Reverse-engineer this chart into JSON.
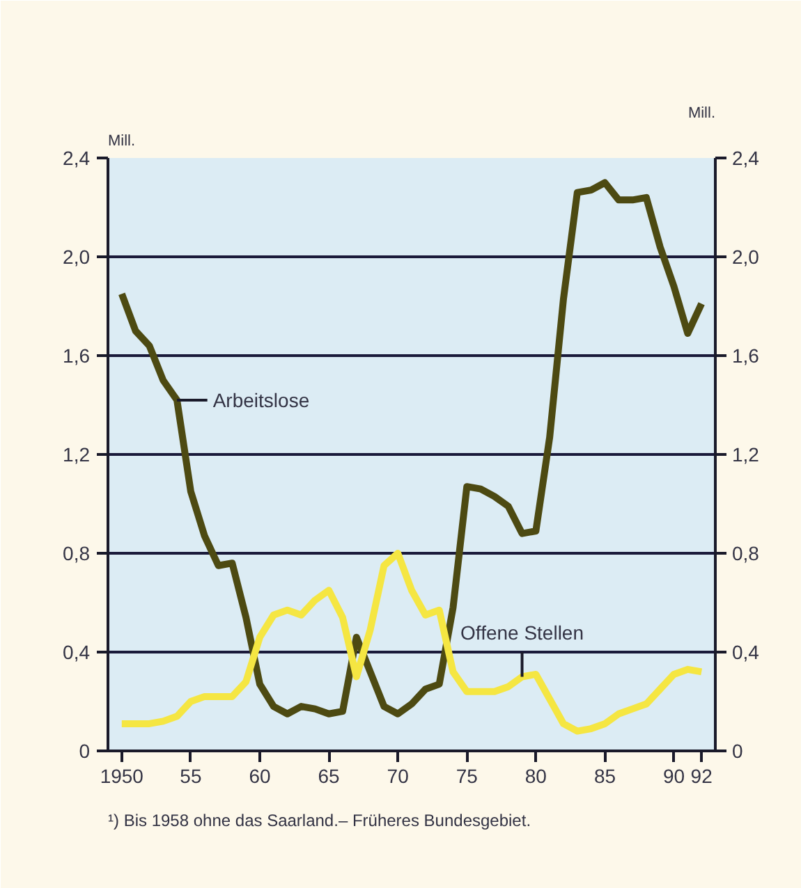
{
  "chart_data": {
    "type": "line",
    "x": [
      1950,
      1951,
      1952,
      1953,
      1954,
      1955,
      1956,
      1957,
      1958,
      1959,
      1960,
      1961,
      1962,
      1963,
      1964,
      1965,
      1966,
      1967,
      1968,
      1969,
      1970,
      1971,
      1972,
      1973,
      1974,
      1975,
      1976,
      1977,
      1978,
      1979,
      1980,
      1981,
      1982,
      1983,
      1984,
      1985,
      1986,
      1987,
      1988,
      1989,
      1990,
      1991,
      1992
    ],
    "series": [
      {
        "color": "#4d4a12",
        "values": [
          1.85,
          1.7,
          1.64,
          1.5,
          1.42,
          1.05,
          0.87,
          0.75,
          0.76,
          0.54,
          0.27,
          0.18,
          0.15,
          0.18,
          0.17,
          0.15,
          0.16,
          0.46,
          0.32,
          0.18,
          0.15,
          0.19,
          0.25,
          0.27,
          0.58,
          1.07,
          1.06,
          1.03,
          0.99,
          0.88,
          0.89,
          1.27,
          1.83,
          2.26,
          2.27,
          2.3,
          2.23,
          2.23,
          2.24,
          2.04,
          1.88,
          1.69,
          1.81
        ]
      },
      {
        "color": "#f5e642",
        "values": [
          0.11,
          0.11,
          0.11,
          0.12,
          0.14,
          0.2,
          0.22,
          0.22,
          0.22,
          0.28,
          0.46,
          0.55,
          0.57,
          0.55,
          0.61,
          0.65,
          0.54,
          0.3,
          0.49,
          0.75,
          0.8,
          0.65,
          0.55,
          0.57,
          0.32,
          0.24,
          0.24,
          0.24,
          0.26,
          0.3,
          0.31,
          0.21,
          0.11,
          0.08,
          0.09,
          0.11,
          0.15,
          0.17,
          0.19,
          0.25,
          0.31,
          0.33,
          0.32
        ]
      }
    ],
    "ylabel": "Mill.",
    "y2label": "Mill.",
    "xlim": [
      1949,
      1993
    ],
    "xticks": [
      1950,
      {
        "value": 1955,
        "label": "55"
      },
      {
        "value": 1960,
        "label": "60"
      },
      {
        "value": 1965,
        "label": "65"
      },
      {
        "value": 1970,
        "label": "70"
      },
      {
        "value": 1975,
        "label": "75"
      },
      {
        "value": 1980,
        "label": "80"
      },
      {
        "value": 1985,
        "label": "85"
      },
      {
        "value": 1990,
        "label": "90"
      },
      {
        "value": 1992,
        "label": "92"
      }
    ],
    "ylim": [
      0,
      2.4
    ],
    "yticks": [
      {
        "value": 0,
        "label": "0"
      },
      {
        "value": 0.4,
        "label": "0,4"
      },
      {
        "value": 0.8,
        "label": "0,8"
      },
      {
        "value": 1.2,
        "label": "1,2"
      },
      {
        "value": 1.6,
        "label": "1,6"
      },
      {
        "value": 2.0,
        "label": "2,0"
      },
      {
        "value": 2.4,
        "label": "2,4"
      }
    ],
    "y2lim": [
      0,
      2.4
    ],
    "y2ticks": [
      {
        "value": 0,
        "label": "0"
      },
      {
        "value": 0.4,
        "label": "0,4"
      },
      {
        "value": 0.8,
        "label": "0,8"
      },
      {
        "value": 1.2,
        "label": "1,2"
      },
      {
        "value": 1.6,
        "label": "1,6"
      },
      {
        "value": 2.0,
        "label": "2,0"
      },
      {
        "value": 2.4,
        "label": "2,4"
      }
    ],
    "grid": "y",
    "annotations": [
      {
        "text": "Arbeitslose",
        "x": 1954,
        "y": 1.42
      },
      {
        "text": "Offene Stellen",
        "x": 1979,
        "y": 0.3
      },
      "¹) Bis 1958 ohne das Saarland.– Früheres Bundesgebiet."
    ]
  }
}
